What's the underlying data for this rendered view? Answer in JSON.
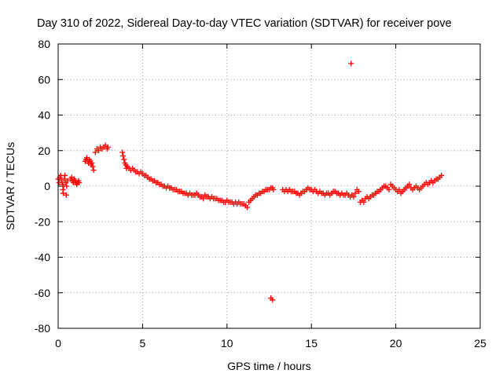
{
  "chart_data": {
    "type": "scatter",
    "title": "Day 310 of 2022, Sidereal Day-to-day VTEC variation (SDTVAR) for receiver pove",
    "xlabel": "GPS time / hours",
    "ylabel": "SDTVAR / TECUs",
    "xlim": [
      0,
      25
    ],
    "ylim": [
      -80,
      80
    ],
    "xticks": [
      0,
      5,
      10,
      15,
      20,
      25
    ],
    "yticks": [
      -80,
      -60,
      -40,
      -20,
      0,
      20,
      40,
      60,
      80
    ],
    "grid": true,
    "marker": "plus",
    "color": "#ff0000",
    "series": [
      {
        "name": "SDTVAR",
        "points": [
          [
            0.0,
            4
          ],
          [
            0.05,
            2
          ],
          [
            0.1,
            5
          ],
          [
            0.15,
            6
          ],
          [
            0.2,
            3
          ],
          [
            0.25,
            1
          ],
          [
            0.28,
            -2
          ],
          [
            0.3,
            -4
          ],
          [
            0.33,
            0
          ],
          [
            0.36,
            4
          ],
          [
            0.4,
            6
          ],
          [
            0.45,
            2
          ],
          [
            0.48,
            -5
          ],
          [
            0.5,
            0
          ],
          [
            0.55,
            3
          ],
          [
            0.75,
            4
          ],
          [
            0.8,
            5
          ],
          [
            0.85,
            3
          ],
          [
            0.9,
            2
          ],
          [
            0.95,
            4
          ],
          [
            1.0,
            3
          ],
          [
            1.05,
            2
          ],
          [
            1.1,
            1
          ],
          [
            1.15,
            2
          ],
          [
            1.2,
            3
          ],
          [
            1.25,
            2
          ],
          [
            1.6,
            14
          ],
          [
            1.65,
            15
          ],
          [
            1.7,
            16
          ],
          [
            1.75,
            14
          ],
          [
            1.8,
            13
          ],
          [
            1.85,
            15
          ],
          [
            1.9,
            14
          ],
          [
            1.95,
            12
          ],
          [
            2.0,
            13
          ],
          [
            2.05,
            11
          ],
          [
            2.1,
            9
          ],
          [
            2.2,
            19
          ],
          [
            2.3,
            21
          ],
          [
            2.4,
            20
          ],
          [
            2.5,
            22
          ],
          [
            2.6,
            21
          ],
          [
            2.7,
            22
          ],
          [
            2.8,
            23
          ],
          [
            2.9,
            21
          ],
          [
            2.95,
            22
          ],
          [
            3.8,
            19
          ],
          [
            3.85,
            17
          ],
          [
            3.9,
            15
          ],
          [
            3.95,
            13
          ],
          [
            4.0,
            12
          ],
          [
            4.05,
            10
          ],
          [
            4.1,
            11
          ],
          [
            4.2,
            10
          ],
          [
            4.3,
            9
          ],
          [
            4.4,
            10
          ],
          [
            4.5,
            9
          ],
          [
            4.6,
            8
          ],
          [
            4.7,
            8
          ],
          [
            4.8,
            7
          ],
          [
            4.9,
            8
          ],
          [
            5.0,
            7
          ],
          [
            5.1,
            6
          ],
          [
            5.2,
            6
          ],
          [
            5.3,
            5
          ],
          [
            5.4,
            4
          ],
          [
            5.5,
            4
          ],
          [
            5.6,
            3
          ],
          [
            5.7,
            3
          ],
          [
            5.8,
            2
          ],
          [
            5.9,
            2
          ],
          [
            6.0,
            1
          ],
          [
            6.1,
            1
          ],
          [
            6.2,
            0
          ],
          [
            6.3,
            0
          ],
          [
            6.4,
            -1
          ],
          [
            6.5,
            0
          ],
          [
            6.6,
            -1
          ],
          [
            6.7,
            -1
          ],
          [
            6.8,
            -2
          ],
          [
            6.9,
            -2
          ],
          [
            7.0,
            -2
          ],
          [
            7.1,
            -3
          ],
          [
            7.2,
            -3
          ],
          [
            7.3,
            -3
          ],
          [
            7.4,
            -4
          ],
          [
            7.5,
            -4
          ],
          [
            7.6,
            -4
          ],
          [
            7.7,
            -5
          ],
          [
            7.8,
            -4
          ],
          [
            7.9,
            -5
          ],
          [
            8.0,
            -5
          ],
          [
            8.1,
            -5
          ],
          [
            8.2,
            -4
          ],
          [
            8.3,
            -5
          ],
          [
            8.4,
            -6
          ],
          [
            8.5,
            -6
          ],
          [
            8.6,
            -7
          ],
          [
            8.7,
            -5
          ],
          [
            8.8,
            -6
          ],
          [
            8.9,
            -6
          ],
          [
            9.0,
            -7
          ],
          [
            9.1,
            -6
          ],
          [
            9.2,
            -7
          ],
          [
            9.3,
            -7
          ],
          [
            9.4,
            -7
          ],
          [
            9.5,
            -8
          ],
          [
            9.6,
            -8
          ],
          [
            9.7,
            -8
          ],
          [
            9.8,
            -9
          ],
          [
            9.9,
            -9
          ],
          [
            10.0,
            -8
          ],
          [
            10.1,
            -9
          ],
          [
            10.2,
            -9
          ],
          [
            10.3,
            -9
          ],
          [
            10.4,
            -10
          ],
          [
            10.5,
            -9
          ],
          [
            10.6,
            -10
          ],
          [
            10.7,
            -9
          ],
          [
            10.8,
            -10
          ],
          [
            10.9,
            -10
          ],
          [
            11.0,
            -10
          ],
          [
            11.1,
            -11
          ],
          [
            11.2,
            -12
          ],
          [
            11.3,
            -9
          ],
          [
            11.4,
            -8
          ],
          [
            11.5,
            -7
          ],
          [
            11.6,
            -6
          ],
          [
            11.7,
            -5
          ],
          [
            11.8,
            -5
          ],
          [
            11.9,
            -4
          ],
          [
            12.0,
            -4
          ],
          [
            12.1,
            -3
          ],
          [
            12.2,
            -3
          ],
          [
            12.3,
            -2
          ],
          [
            12.4,
            -2
          ],
          [
            12.5,
            -2
          ],
          [
            12.6,
            -1
          ],
          [
            12.7,
            -1
          ],
          [
            12.75,
            -2
          ],
          [
            12.6,
            -63
          ],
          [
            12.7,
            -64
          ],
          [
            13.3,
            -2
          ],
          [
            13.4,
            -3
          ],
          [
            13.5,
            -2
          ],
          [
            13.6,
            -3
          ],
          [
            13.7,
            -2
          ],
          [
            13.8,
            -3
          ],
          [
            13.9,
            -3
          ],
          [
            14.0,
            -3
          ],
          [
            14.1,
            -4
          ],
          [
            14.2,
            -4
          ],
          [
            14.3,
            -5
          ],
          [
            14.4,
            -4
          ],
          [
            14.5,
            -3
          ],
          [
            14.6,
            -3
          ],
          [
            14.7,
            -2
          ],
          [
            14.8,
            -1
          ],
          [
            14.9,
            -2
          ],
          [
            15.0,
            -2
          ],
          [
            15.1,
            -3
          ],
          [
            15.2,
            -2
          ],
          [
            15.3,
            -3
          ],
          [
            15.4,
            -4
          ],
          [
            15.5,
            -3
          ],
          [
            15.6,
            -4
          ],
          [
            15.7,
            -4
          ],
          [
            15.8,
            -5
          ],
          [
            15.9,
            -4
          ],
          [
            16.0,
            -4
          ],
          [
            16.1,
            -5
          ],
          [
            16.2,
            -4
          ],
          [
            16.3,
            -3
          ],
          [
            16.4,
            -3
          ],
          [
            16.5,
            -4
          ],
          [
            16.6,
            -4
          ],
          [
            16.7,
            -5
          ],
          [
            16.8,
            -4
          ],
          [
            16.9,
            -5
          ],
          [
            17.0,
            -5
          ],
          [
            17.1,
            -4
          ],
          [
            17.2,
            -5
          ],
          [
            17.3,
            -6
          ],
          [
            17.4,
            -5
          ],
          [
            17.5,
            -6
          ],
          [
            17.6,
            -4
          ],
          [
            17.7,
            -2
          ],
          [
            17.8,
            -3
          ],
          [
            17.9,
            -9
          ],
          [
            17.35,
            69
          ],
          [
            18.0,
            -8
          ],
          [
            18.1,
            -9
          ],
          [
            18.2,
            -7
          ],
          [
            18.3,
            -6
          ],
          [
            18.4,
            -7
          ],
          [
            18.5,
            -6
          ],
          [
            18.6,
            -5
          ],
          [
            18.7,
            -5
          ],
          [
            18.8,
            -4
          ],
          [
            18.9,
            -3
          ],
          [
            19.0,
            -3
          ],
          [
            19.1,
            -2
          ],
          [
            19.2,
            -1
          ],
          [
            19.3,
            0
          ],
          [
            19.4,
            0
          ],
          [
            19.5,
            -1
          ],
          [
            19.6,
            -2
          ],
          [
            19.7,
            1
          ],
          [
            19.8,
            0
          ],
          [
            19.9,
            -1
          ],
          [
            20.0,
            -2
          ],
          [
            20.1,
            -3
          ],
          [
            20.2,
            -2
          ],
          [
            20.3,
            -4
          ],
          [
            20.4,
            -3
          ],
          [
            20.5,
            -2
          ],
          [
            20.6,
            -1
          ],
          [
            20.7,
            0
          ],
          [
            20.8,
            1
          ],
          [
            20.9,
            -1
          ],
          [
            21.0,
            -2
          ],
          [
            21.1,
            -1
          ],
          [
            21.2,
            0
          ],
          [
            21.3,
            -1
          ],
          [
            21.4,
            -2
          ],
          [
            21.5,
            -1
          ],
          [
            21.6,
            0
          ],
          [
            21.7,
            1
          ],
          [
            21.8,
            2
          ],
          [
            21.9,
            1
          ],
          [
            22.0,
            2
          ],
          [
            22.1,
            3
          ],
          [
            22.2,
            2
          ],
          [
            22.3,
            3
          ],
          [
            22.4,
            4
          ],
          [
            22.5,
            4
          ],
          [
            22.6,
            5
          ],
          [
            22.7,
            6
          ]
        ]
      }
    ]
  }
}
